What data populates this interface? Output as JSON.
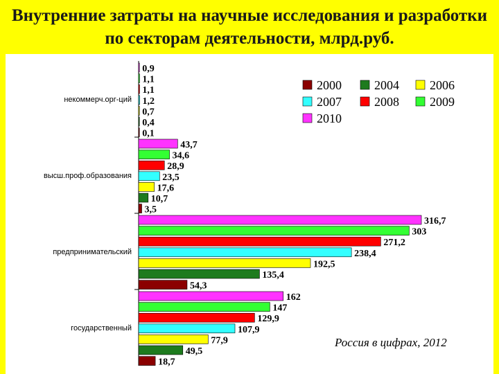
{
  "title": "Внутренние затраты на научные исследования и разработки по секторам деятельности, млрд.руб.",
  "footnote": "Россия в цифрах, 2012",
  "chart_data": {
    "type": "bar",
    "orientation": "horizontal",
    "categories": [
      "некоммерч.орг-ций",
      "высш.проф.образования",
      "предпринимательский",
      "государственный"
    ],
    "series": [
      {
        "name": "2000",
        "color": "#8b0000",
        "values": [
          0.1,
          3.5,
          54.3,
          18.7
        ],
        "labels": [
          "0,1",
          "3,5",
          "54,3",
          "18,7"
        ]
      },
      {
        "name": "2004",
        "color": "#1e7b1e",
        "values": [
          0.4,
          10.7,
          135.4,
          49.5
        ],
        "labels": [
          "0,4",
          "10,7",
          "135,4",
          "49,5"
        ]
      },
      {
        "name": "2006",
        "color": "#ffff00",
        "values": [
          0.7,
          17.6,
          192.5,
          77.9
        ],
        "labels": [
          "0,7",
          "17,6",
          "192,5",
          "77,9"
        ]
      },
      {
        "name": "2007",
        "color": "#33ffff",
        "values": [
          1.2,
          23.5,
          238.4,
          107.9
        ],
        "labels": [
          "1,2",
          "23,5",
          "238,4",
          "107,9"
        ]
      },
      {
        "name": "2008",
        "color": "#ff0000",
        "values": [
          1.1,
          28.9,
          271.2,
          129.9
        ],
        "labels": [
          "1,1",
          "28,9",
          "271,2",
          "129,9"
        ]
      },
      {
        "name": "2009",
        "color": "#33ff33",
        "values": [
          1.1,
          34.6,
          303,
          147
        ],
        "labels": [
          "1,1",
          "34,6",
          "303",
          "147"
        ]
      },
      {
        "name": "2010",
        "color": "#ff33ff",
        "values": [
          0.9,
          43.7,
          316.7,
          162
        ],
        "labels": [
          "0,9",
          "43,7",
          "316,7",
          "162"
        ]
      }
    ],
    "legend_position": "top-right",
    "xlim": [
      0,
      316.7
    ],
    "grid": false
  }
}
